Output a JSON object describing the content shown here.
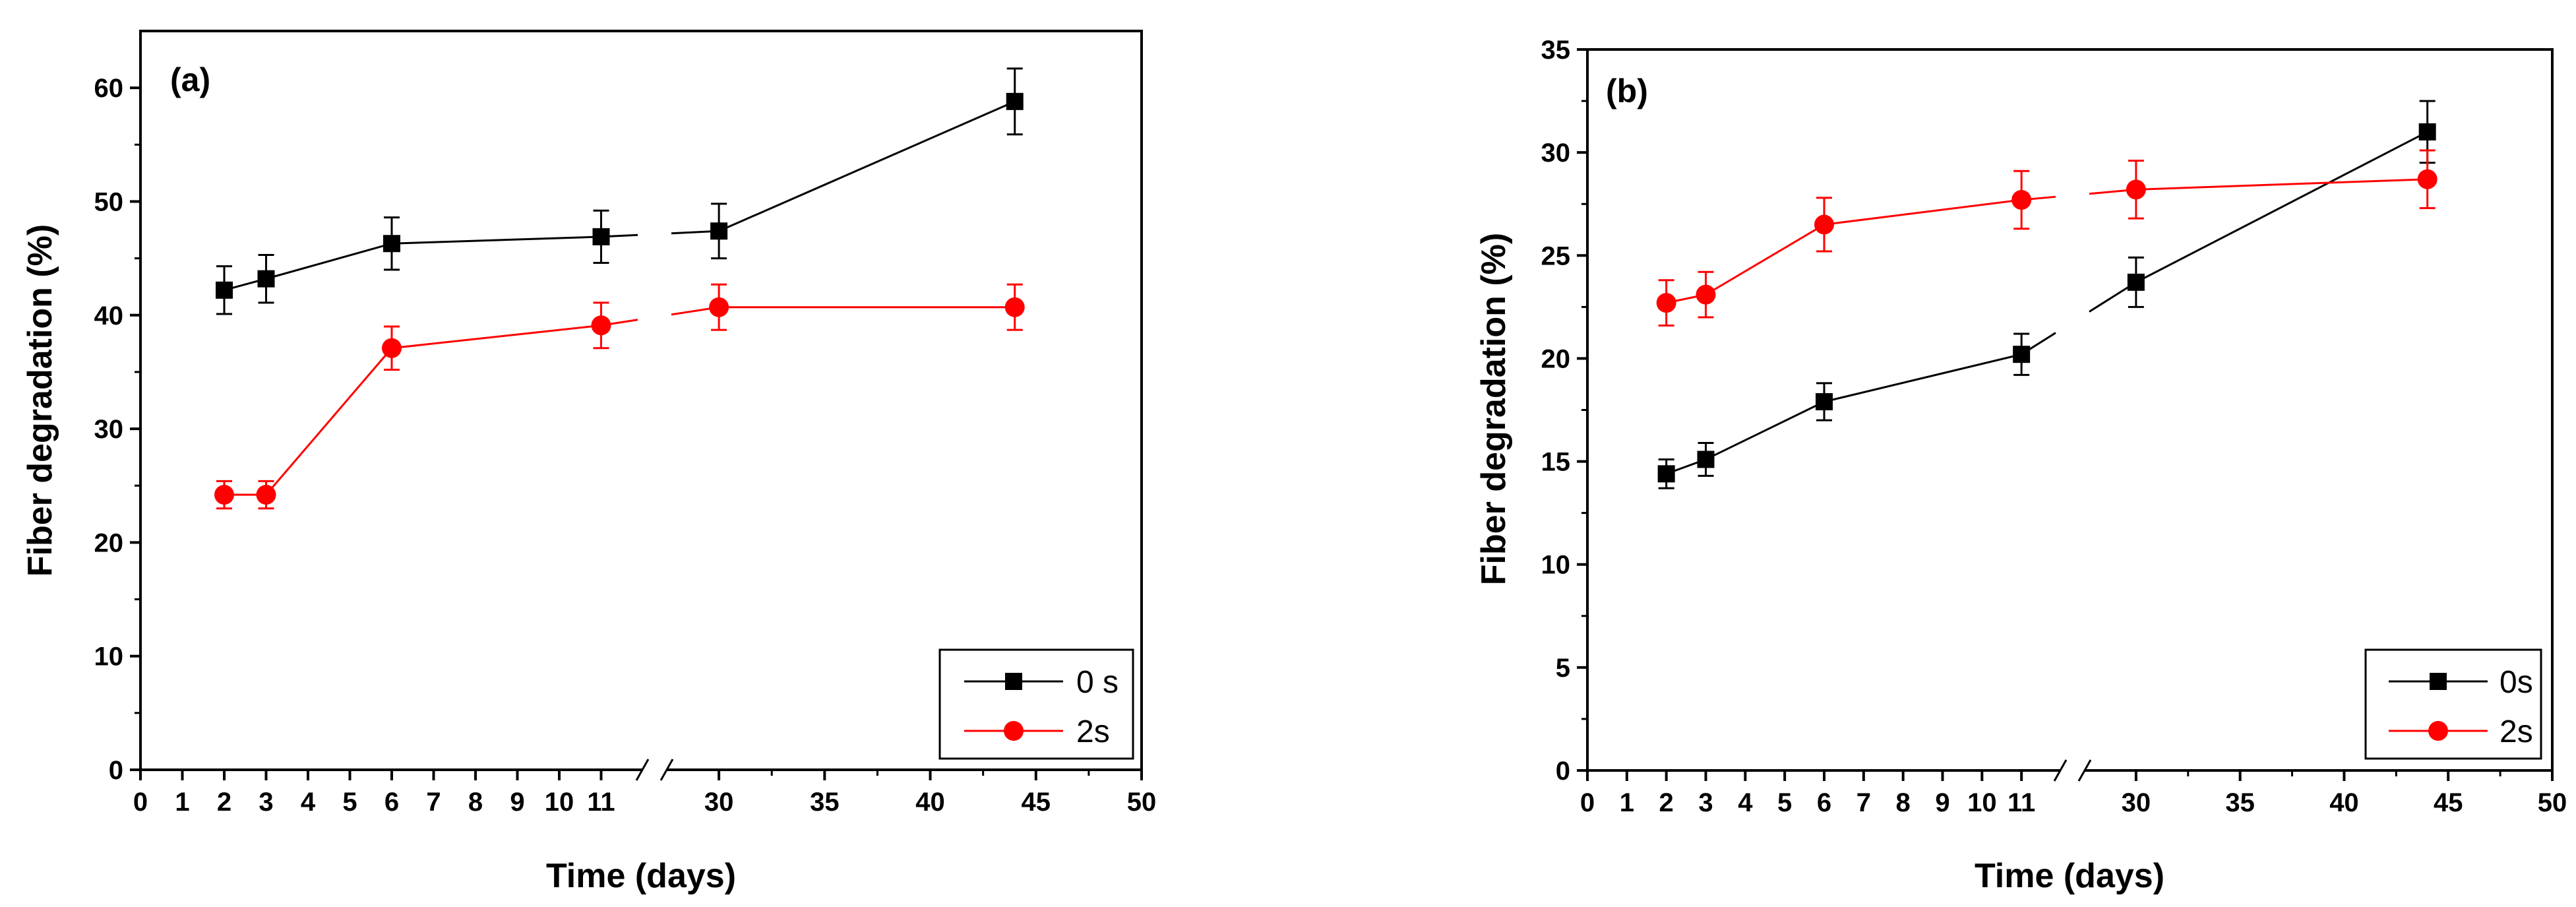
{
  "chart_data": [
    {
      "type": "line",
      "panel_label": "(a)",
      "xlabel": "Time (days)",
      "ylabel": "Fiber degradation (%)",
      "ylim": [
        0,
        65
      ],
      "y_ticks": [
        0,
        10,
        20,
        30,
        40,
        50,
        60
      ],
      "x_axis": {
        "broken": true,
        "left_segment": {
          "range": [
            0,
            12
          ],
          "ticks": [
            0,
            1,
            2,
            3,
            4,
            5,
            6,
            7,
            8,
            9,
            10,
            11
          ]
        },
        "right_segment": {
          "range": [
            27.5,
            50
          ],
          "ticks": [
            30,
            35,
            40,
            45,
            50
          ]
        }
      },
      "legend_position": "bottom-right",
      "series": [
        {
          "name": "0 s",
          "color": "#000000",
          "marker": "square",
          "x": [
            2,
            3,
            6,
            11,
            30,
            44
          ],
          "values": [
            42.2,
            43.2,
            46.3,
            46.9,
            47.4,
            58.8
          ],
          "errors": [
            2.1,
            2.1,
            2.3,
            2.3,
            2.4,
            2.9
          ]
        },
        {
          "name": "2s",
          "color": "#ff0000",
          "marker": "circle",
          "x": [
            2,
            3,
            6,
            11,
            30,
            44
          ],
          "values": [
            24.2,
            24.2,
            37.1,
            39.1,
            40.7,
            40.7
          ],
          "errors": [
            1.2,
            1.2,
            1.9,
            2.0,
            2.0,
            2.0
          ]
        }
      ]
    },
    {
      "type": "line",
      "panel_label": "(b)",
      "xlabel": "Time (days)",
      "ylabel": "Fiber degradation (%)",
      "ylim": [
        0,
        35
      ],
      "y_ticks": [
        0,
        5,
        10,
        15,
        20,
        25,
        30,
        35
      ],
      "x_axis": {
        "broken": true,
        "left_segment": {
          "range": [
            0,
            12
          ],
          "ticks": [
            0,
            1,
            2,
            3,
            4,
            5,
            6,
            7,
            8,
            9,
            10,
            11
          ]
        },
        "right_segment": {
          "range": [
            27.5,
            50
          ],
          "ticks": [
            30,
            35,
            40,
            45,
            50
          ]
        }
      },
      "legend_position": "bottom-right",
      "series": [
        {
          "name": "0s",
          "color": "#000000",
          "marker": "square",
          "x": [
            2,
            3,
            6,
            11,
            30,
            44
          ],
          "values": [
            14.4,
            15.1,
            17.9,
            20.2,
            23.7,
            31.0
          ],
          "errors": [
            0.7,
            0.8,
            0.9,
            1.0,
            1.2,
            1.5
          ]
        },
        {
          "name": "2s",
          "color": "#ff0000",
          "marker": "circle",
          "x": [
            2,
            3,
            6,
            11,
            30,
            44
          ],
          "values": [
            22.7,
            23.1,
            26.5,
            27.7,
            28.2,
            28.7
          ],
          "errors": [
            1.1,
            1.1,
            1.3,
            1.4,
            1.4,
            1.4
          ]
        }
      ]
    }
  ]
}
